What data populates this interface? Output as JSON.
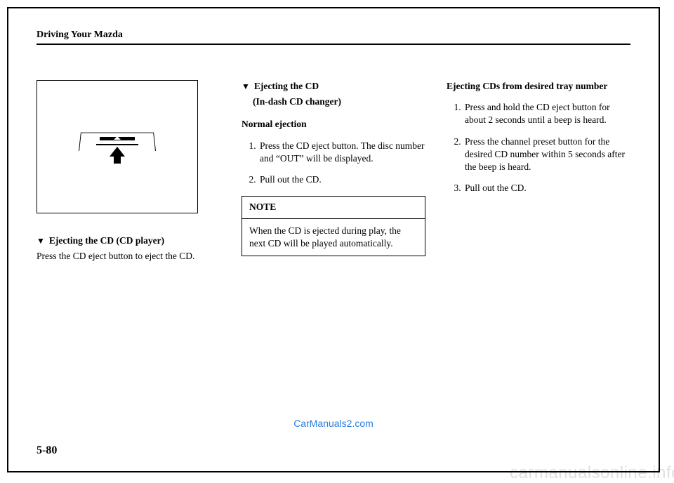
{
  "header": "Driving Your Mazda",
  "col1": {
    "heading": "Ejecting the CD (CD player)",
    "body": "Press the CD eject button to eject the CD."
  },
  "col2": {
    "heading": "Ejecting the CD",
    "subheading": "(In-dash CD changer)",
    "normal": "Normal ejection",
    "steps": [
      "Press the CD eject button. The disc number and “OUT” will be displayed.",
      "Pull out the CD."
    ],
    "note_title": "NOTE",
    "note_body": "When the CD is ejected during play, the next CD will be played automatically."
  },
  "col3": {
    "heading": "Ejecting CDs from desired tray number",
    "steps": [
      "Press and hold the CD eject button for about 2 seconds until a beep is heard.",
      "Press the channel preset button for the desired CD number within 5 seconds after the beep is heard.",
      "Pull out the CD."
    ]
  },
  "watermark_center": "CarManuals2.com",
  "page_number": "5-80",
  "watermark_corner": "carmanualsonline.info"
}
